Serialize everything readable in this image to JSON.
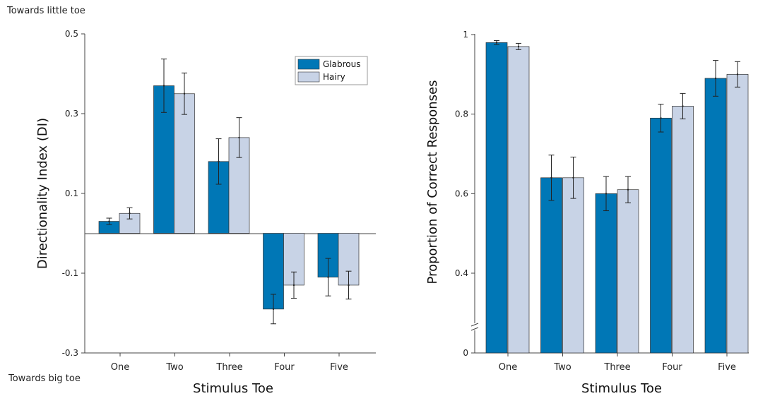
{
  "colors": {
    "glabrous": "#0077b6",
    "hairy": "#c8d3e6",
    "axis": "#444444",
    "error": "#222222"
  },
  "chart_data": [
    {
      "type": "bar",
      "title": "",
      "xlabel": "Stimulus Toe",
      "ylabel": "Directionality Index (DI)",
      "top_note": "Towards little toe",
      "bottom_note": "Towards big toe",
      "ylim": [
        -0.3,
        0.5
      ],
      "yticks": [
        "0.5",
        "0.3",
        "0.1",
        "-0.1",
        "-0.3"
      ],
      "categories": [
        "One",
        "Two",
        "Three",
        "Four",
        "Five"
      ],
      "legend": "top-right",
      "series": [
        {
          "name": "Glabrous",
          "values": [
            0.03,
            0.37,
            0.18,
            -0.19,
            -0.11
          ],
          "errors": [
            0.008,
            0.067,
            0.057,
            0.037,
            0.047
          ]
        },
        {
          "name": "Hairy",
          "values": [
            0.05,
            0.35,
            0.24,
            -0.13,
            -0.13
          ],
          "errors": [
            0.014,
            0.052,
            0.05,
            0.033,
            0.035
          ]
        }
      ]
    },
    {
      "type": "bar",
      "title": "",
      "xlabel": "Stimulus Toe",
      "ylabel": "Proportion of Correct Responses",
      "axis_break": true,
      "ylim": [
        0.4,
        1.0
      ],
      "yticks": [
        "1",
        "0.8",
        "0.6",
        "0.4",
        "0"
      ],
      "categories": [
        "One",
        "Two",
        "Three",
        "Four",
        "Five"
      ],
      "series": [
        {
          "name": "Glabrous",
          "values": [
            0.98,
            0.64,
            0.6,
            0.79,
            0.89
          ],
          "errors": [
            0.005,
            0.057,
            0.043,
            0.035,
            0.045
          ]
        },
        {
          "name": "Hairy",
          "values": [
            0.97,
            0.64,
            0.61,
            0.82,
            0.9
          ],
          "errors": [
            0.008,
            0.052,
            0.033,
            0.032,
            0.032
          ]
        }
      ]
    }
  ]
}
